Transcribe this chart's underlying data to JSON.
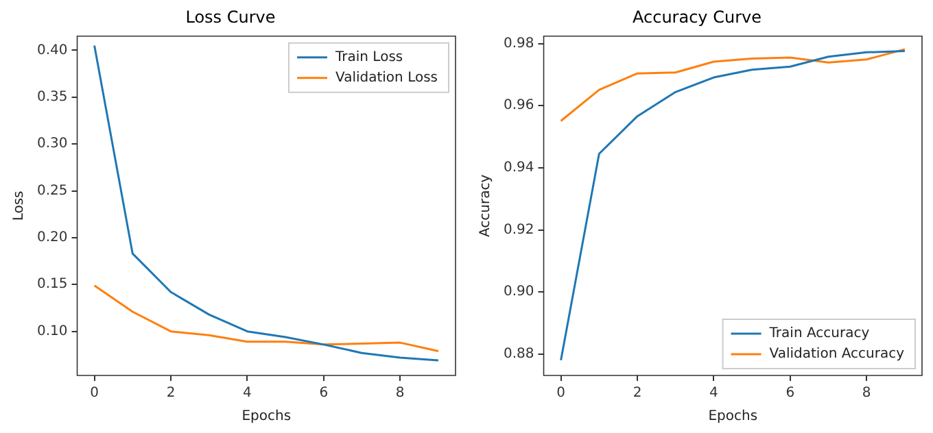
{
  "chart_data": [
    {
      "type": "line",
      "title": "Loss Curve",
      "xlabel": "Epochs",
      "ylabel": "Loss",
      "x": [
        0,
        1,
        2,
        3,
        4,
        5,
        6,
        7,
        8,
        9
      ],
      "series": [
        {
          "name": "Train Loss",
          "color": "#1f77b4",
          "values": [
            0.405,
            0.183,
            0.142,
            0.118,
            0.1,
            0.094,
            0.086,
            0.077,
            0.072,
            0.069
          ]
        },
        {
          "name": "Validation Loss",
          "color": "#ff7f0e",
          "values": [
            0.149,
            0.121,
            0.1,
            0.096,
            0.089,
            0.089,
            0.086,
            0.087,
            0.088,
            0.079
          ]
        }
      ],
      "xlim": [
        -0.45,
        9.45
      ],
      "xticks": [
        0,
        2,
        4,
        6,
        8
      ],
      "ylim": [
        0.053,
        0.415
      ],
      "yticks": [
        {
          "value": 0.1,
          "label": "0.10"
        },
        {
          "value": 0.15,
          "label": "0.15"
        },
        {
          "value": 0.2,
          "label": "0.20"
        },
        {
          "value": 0.25,
          "label": "0.25"
        },
        {
          "value": 0.3,
          "label": "0.30"
        },
        {
          "value": 0.35,
          "label": "0.35"
        },
        {
          "value": 0.4,
          "label": "0.40"
        }
      ],
      "legend": "top right"
    },
    {
      "type": "line",
      "title": "Accuracy Curve",
      "xlabel": "Epochs",
      "ylabel": "Accuracy",
      "x": [
        0,
        1,
        2,
        3,
        4,
        5,
        6,
        7,
        8,
        9
      ],
      "series": [
        {
          "name": "Train Accuracy",
          "color": "#1f77b4",
          "values": [
            0.878,
            0.9445,
            0.9566,
            0.9644,
            0.9691,
            0.9716,
            0.9726,
            0.9758,
            0.9772,
            0.9776
          ]
        },
        {
          "name": "Validation Accuracy",
          "color": "#ff7f0e",
          "values": [
            0.9551,
            0.9651,
            0.9704,
            0.9707,
            0.9742,
            0.9752,
            0.9755,
            0.9739,
            0.9749,
            0.9782
          ]
        }
      ],
      "xlim": [
        -0.45,
        9.45
      ],
      "xticks": [
        0,
        2,
        4,
        6,
        8
      ],
      "ylim": [
        0.8731,
        0.9824
      ],
      "yticks": [
        {
          "value": 0.88,
          "label": "0.88"
        },
        {
          "value": 0.9,
          "label": "0.90"
        },
        {
          "value": 0.92,
          "label": "0.92"
        },
        {
          "value": 0.94,
          "label": "0.94"
        },
        {
          "value": 0.96,
          "label": "0.96"
        },
        {
          "value": 0.98,
          "label": "0.98"
        }
      ],
      "legend": "bottom right"
    }
  ]
}
